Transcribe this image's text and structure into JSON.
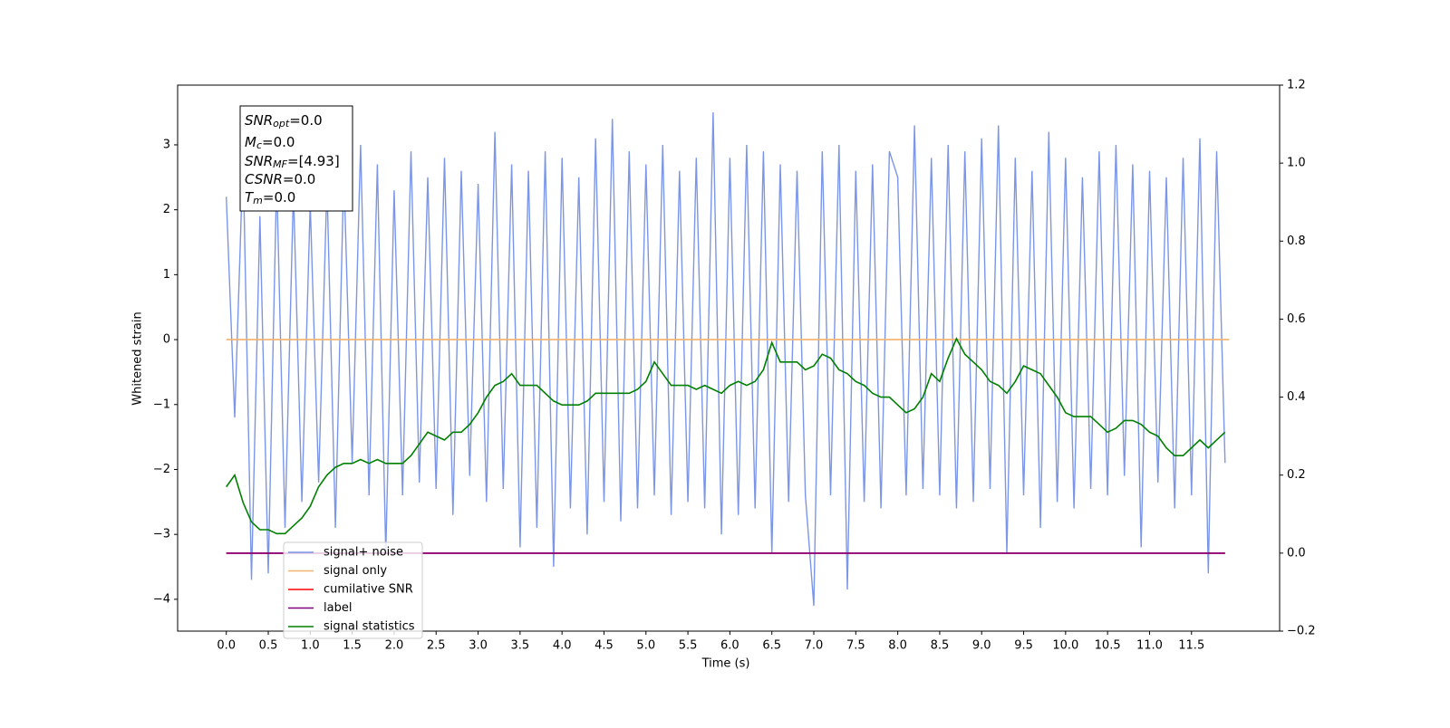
{
  "chart_data": {
    "type": "line",
    "xlabel": "Time (s)",
    "ylabel": "Whitened strain",
    "xlim": [
      -0.58,
      12.55
    ],
    "ylim": [
      -4.49,
      3.92
    ],
    "y2lim": [
      -0.2,
      1.2
    ],
    "xticks": [
      {
        "value": 0,
        "label": "0.0"
      },
      0.5,
      {
        "value": 1,
        "label": "1.0"
      },
      1.5,
      {
        "value": 2,
        "label": "2.0"
      },
      2.5,
      {
        "value": 3,
        "label": "3.0"
      },
      3.5,
      {
        "value": 4,
        "label": "4.0"
      },
      4.5,
      {
        "value": 5,
        "label": "5.0"
      },
      5.5,
      {
        "value": 6,
        "label": "6.0"
      },
      6.5,
      {
        "value": 7,
        "label": "7.0"
      },
      7.5,
      {
        "value": 8,
        "label": "8.0"
      },
      8.5,
      {
        "value": 9,
        "label": "9.0"
      },
      9.5,
      {
        "value": 10,
        "label": "10.0"
      },
      10.5,
      {
        "value": 11,
        "label": "11.0"
      },
      11.5
    ],
    "yticks": [
      {
        "value": -4,
        "label": "−4"
      },
      {
        "value": -3,
        "label": "−3"
      },
      {
        "value": -2,
        "label": "−2"
      },
      {
        "value": -1,
        "label": "−1"
      },
      0,
      1,
      2,
      3
    ],
    "y2ticks": [
      {
        "value": -0.2,
        "label": "−0.2"
      },
      {
        "value": 0,
        "label": "0.0"
      },
      0.2,
      0.4,
      0.6,
      0.8,
      {
        "value": 1,
        "label": "1.0"
      },
      1.2
    ],
    "legend": "lower left",
    "annotation": [
      {
        "base": "SNR",
        "sub": "opt",
        "text": "=0.0"
      },
      {
        "base": "M",
        "sub": "c",
        "text": "=0.0"
      },
      {
        "base": "SNR",
        "sub": "MF",
        "text": "=[4.93]"
      },
      {
        "base": "CSNR",
        "text": "=0.0"
      },
      {
        "base": "T",
        "sub": "m",
        "text": "=0.0"
      }
    ],
    "x": [
      0,
      0.1,
      0.2,
      0.3,
      0.4,
      0.5,
      0.6,
      0.7,
      0.8,
      0.9,
      1,
      1.1,
      1.2,
      1.3,
      1.4,
      1.5,
      1.6,
      1.7,
      1.8,
      1.9,
      2,
      2.1,
      2.2,
      2.3,
      2.4,
      2.5,
      2.6,
      2.7,
      2.8,
      2.9,
      3,
      3.1,
      3.2,
      3.3,
      3.4,
      3.5,
      3.6,
      3.7,
      3.8,
      3.9,
      4,
      4.1,
      4.2,
      4.3,
      4.4,
      4.5,
      4.6,
      4.7,
      4.8,
      4.9,
      5,
      5.1,
      5.2,
      5.3,
      5.4,
      5.5,
      5.6,
      5.7,
      5.8,
      5.9,
      6,
      6.1,
      6.2,
      6.3,
      6.4,
      6.5,
      6.6,
      6.7,
      6.8,
      6.9,
      7,
      7.1,
      7.2,
      7.3,
      7.4,
      7.5,
      7.6,
      7.7,
      7.8,
      7.9,
      8,
      8.1,
      8.2,
      8.3,
      8.4,
      8.5,
      8.6,
      8.7,
      8.8,
      8.9,
      9,
      9.1,
      9.2,
      9.3,
      9.4,
      9.5,
      9.6,
      9.7,
      9.8,
      9.9,
      10,
      10.1,
      10.2,
      10.3,
      10.4,
      10.5,
      10.6,
      10.7,
      10.8,
      10.9,
      11,
      11.1,
      11.2,
      11.3,
      11.4,
      11.5,
      11.6,
      11.7,
      11.8,
      11.9
    ],
    "series": [
      {
        "name": "signal+ noise",
        "color": "#7b96e8",
        "values": [
          2.2,
          -1.2,
          2.8,
          -3.7,
          1.9,
          -3.6,
          2.5,
          -2.9,
          2.3,
          -2.5,
          2.1,
          -2.2,
          2.4,
          -2.9,
          2.6,
          -1.9,
          3.0,
          -2.4,
          2.7,
          -3.3,
          2.3,
          -2.4,
          2.9,
          -2.2,
          2.5,
          -2.3,
          2.8,
          -2.7,
          2.6,
          -2.1,
          2.4,
          -2.5,
          3.2,
          -2.3,
          2.7,
          -3.2,
          2.6,
          -2.9,
          2.9,
          -3.5,
          2.8,
          -2.6,
          2.5,
          -3.0,
          3.1,
          -2.5,
          3.4,
          -2.8,
          2.9,
          -2.6,
          2.7,
          -2.4,
          3.0,
          -2.7,
          2.6,
          -2.5,
          2.8,
          -2.6,
          3.5,
          -3.0,
          2.8,
          -2.7,
          3.0,
          -2.6,
          2.9,
          -3.3,
          2.7,
          -2.5,
          2.6,
          -2.4,
          -4.1,
          2.9,
          -2.4,
          3.0,
          -3.85,
          2.6,
          -2.5,
          2.7,
          -2.6,
          2.9,
          2.5,
          -2.4,
          3.3,
          -2.3,
          2.8,
          -2.4,
          3.0,
          -2.6,
          2.9,
          -2.5,
          3.1,
          -2.3,
          3.3,
          -3.3,
          2.8,
          -2.4,
          2.6,
          -2.9,
          3.2,
          -2.5,
          2.8,
          -2.6,
          2.5,
          -2.3,
          2.9,
          -2.4,
          3.0,
          -2.1,
          2.7,
          -3.2,
          2.6,
          -2.2,
          2.5,
          -2.6,
          2.8,
          -2.4,
          3.1,
          -3.6,
          2.9,
          -1.9
        ]
      },
      {
        "name": "signal only",
        "color": "#f5b26b",
        "x": [
          0,
          11.95
        ],
        "values": [
          0,
          0
        ]
      },
      {
        "name": "cumilative SNR",
        "color": "red",
        "axis": "y2",
        "x": [
          0,
          11.9
        ],
        "values": [
          0,
          0
        ]
      },
      {
        "name": "label",
        "color": "purple",
        "axis": "y2",
        "x": [
          0,
          11.9
        ],
        "values": [
          0,
          0
        ]
      },
      {
        "name": "signal statistics",
        "color": "green",
        "axis": "y2",
        "values": [
          0.17,
          0.2,
          0.13,
          0.08,
          0.06,
          0.06,
          0.05,
          0.05,
          0.07,
          0.09,
          0.12,
          0.17,
          0.2,
          0.22,
          0.23,
          0.23,
          0.24,
          0.23,
          0.24,
          0.23,
          0.23,
          0.23,
          0.25,
          0.28,
          0.31,
          0.3,
          0.29,
          0.31,
          0.31,
          0.33,
          0.36,
          0.4,
          0.43,
          0.44,
          0.46,
          0.43,
          0.43,
          0.43,
          0.41,
          0.39,
          0.38,
          0.38,
          0.38,
          0.39,
          0.41,
          0.41,
          0.41,
          0.41,
          0.41,
          0.42,
          0.44,
          0.49,
          0.46,
          0.43,
          0.43,
          0.43,
          0.42,
          0.43,
          0.42,
          0.41,
          0.43,
          0.44,
          0.43,
          0.44,
          0.47,
          0.54,
          0.49,
          0.49,
          0.49,
          0.47,
          0.48,
          0.51,
          0.5,
          0.47,
          0.46,
          0.44,
          0.43,
          0.41,
          0.4,
          0.4,
          0.38,
          0.36,
          0.37,
          0.4,
          0.46,
          0.44,
          0.5,
          0.55,
          0.51,
          0.49,
          0.47,
          0.44,
          0.43,
          0.41,
          0.44,
          0.48,
          0.47,
          0.46,
          0.43,
          0.4,
          0.36,
          0.35,
          0.35,
          0.35,
          0.33,
          0.31,
          0.32,
          0.34,
          0.34,
          0.33,
          0.31,
          0.3,
          0.27,
          0.25,
          0.25,
          0.27,
          0.29,
          0.27,
          0.29,
          0.31
        ]
      }
    ]
  }
}
